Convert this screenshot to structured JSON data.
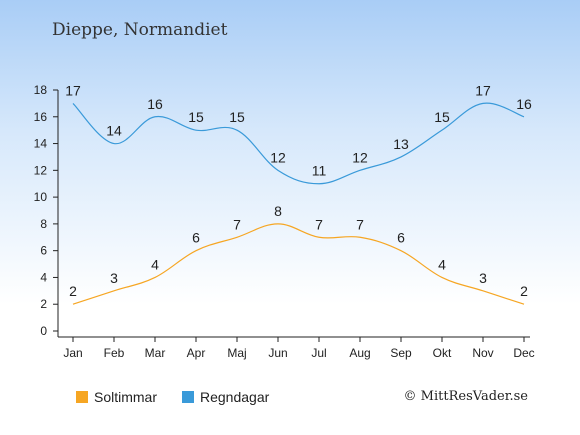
{
  "title": "Dieppe, Normandiet",
  "copyright": "© MittResVader.se",
  "colors": {
    "sun": "#f6a623",
    "rain": "#3a9ad9"
  },
  "chart_data": {
    "type": "line",
    "categories": [
      "Jan",
      "Feb",
      "Mar",
      "Apr",
      "Maj",
      "Jun",
      "Jul",
      "Aug",
      "Sep",
      "Okt",
      "Nov",
      "Dec"
    ],
    "series": [
      {
        "name": "Soltimmar",
        "values": [
          2,
          3,
          4,
          6,
          7,
          8,
          7,
          7,
          6,
          4,
          3,
          2
        ]
      },
      {
        "name": "Regndagar",
        "values": [
          17,
          14,
          16,
          15,
          15,
          12,
          11,
          12,
          13,
          15,
          17,
          16
        ]
      }
    ],
    "ylim": [
      0,
      18
    ],
    "yticks": [
      0,
      2,
      4,
      6,
      8,
      10,
      12,
      14,
      16,
      18
    ],
    "grid": false,
    "legend_position": "bottom-left"
  }
}
